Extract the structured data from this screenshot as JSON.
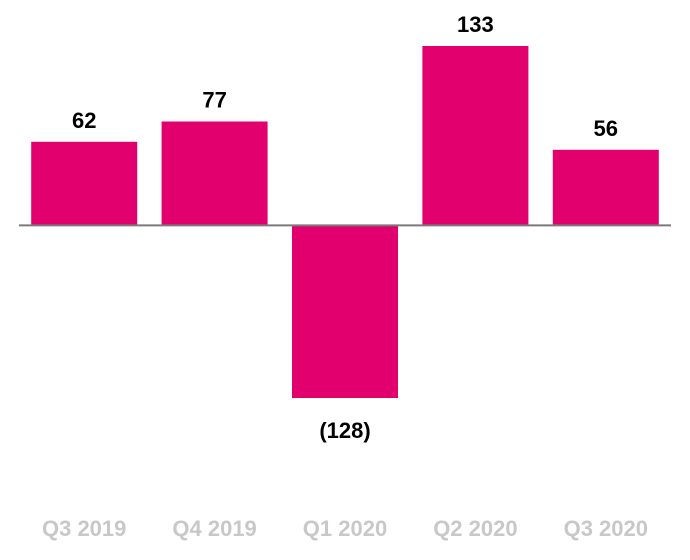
{
  "chart_data": {
    "type": "bar",
    "title": "",
    "xlabel": "",
    "ylabel": "",
    "categories": [
      "Q3 2019",
      "Q4 2019",
      "Q1 2020",
      "Q2 2020",
      "Q3 2020"
    ],
    "values": [
      62,
      77,
      -128,
      133,
      56
    ],
    "value_labels": [
      "62",
      "77",
      "(128)",
      "133",
      "56"
    ],
    "ylim": [
      -128,
      133
    ],
    "grid": false,
    "legend": "none",
    "colors": {
      "bar": "#e2006f",
      "baseline": "#7a7a7a",
      "value_label": "#000000",
      "tick_label": "#c8c8c8"
    }
  }
}
